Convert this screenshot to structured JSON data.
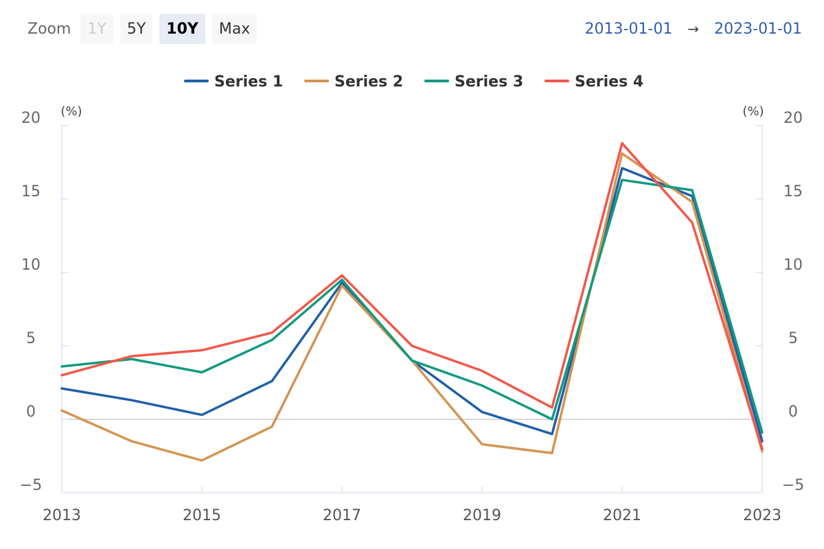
{
  "toolbar": {
    "zoom_label": "Zoom",
    "buttons": [
      {
        "label": "1Y",
        "state": "disabled"
      },
      {
        "label": "5Y",
        "state": "normal"
      },
      {
        "label": "10Y",
        "state": "selected"
      },
      {
        "label": "Max",
        "state": "normal"
      }
    ],
    "range_from": "2013-01-01",
    "range_arrow": "→",
    "range_to": "2023-01-01"
  },
  "colors": {
    "Series 1": "#1f5fa8",
    "Series 2": "#d39552",
    "Series 3": "#129a80",
    "Series 4": "#f1584a",
    "axis": "#ccd6eb",
    "zero_line": "#b0b0b0",
    "tick_text": "#666666"
  },
  "chart_data": {
    "type": "line",
    "title": "",
    "xlabel": "",
    "ylabel": "(%)",
    "ylabel_right": "(%)",
    "x": [
      2013,
      2014,
      2015,
      2016,
      2017,
      2018,
      2019,
      2020,
      2021,
      2022,
      2023
    ],
    "x_ticks": [
      "2013",
      "2015",
      "2017",
      "2019",
      "2021",
      "2023"
    ],
    "y_ticks": [
      "20",
      "15",
      "10",
      "5",
      "0",
      "−5"
    ],
    "ylim": [
      -5,
      20
    ],
    "legend": "top-center",
    "grid": false,
    "series": [
      {
        "name": "Series 1",
        "values": [
          2.1,
          1.3,
          0.3,
          2.6,
          9.3,
          4.0,
          0.5,
          -1.0,
          17.1,
          15.2,
          -1.5
        ]
      },
      {
        "name": "Series 2",
        "values": [
          0.6,
          -1.5,
          -2.8,
          -0.5,
          9.1,
          4.0,
          -1.7,
          -2.3,
          18.1,
          14.8,
          -2.2
        ]
      },
      {
        "name": "Series 3",
        "values": [
          3.6,
          4.1,
          3.2,
          5.4,
          9.5,
          4.0,
          2.3,
          0.0,
          16.3,
          15.6,
          -0.9
        ]
      },
      {
        "name": "Series 4",
        "values": [
          3.0,
          4.3,
          4.7,
          5.9,
          9.8,
          5.0,
          3.3,
          0.8,
          18.8,
          13.4,
          -2.0
        ]
      }
    ]
  }
}
